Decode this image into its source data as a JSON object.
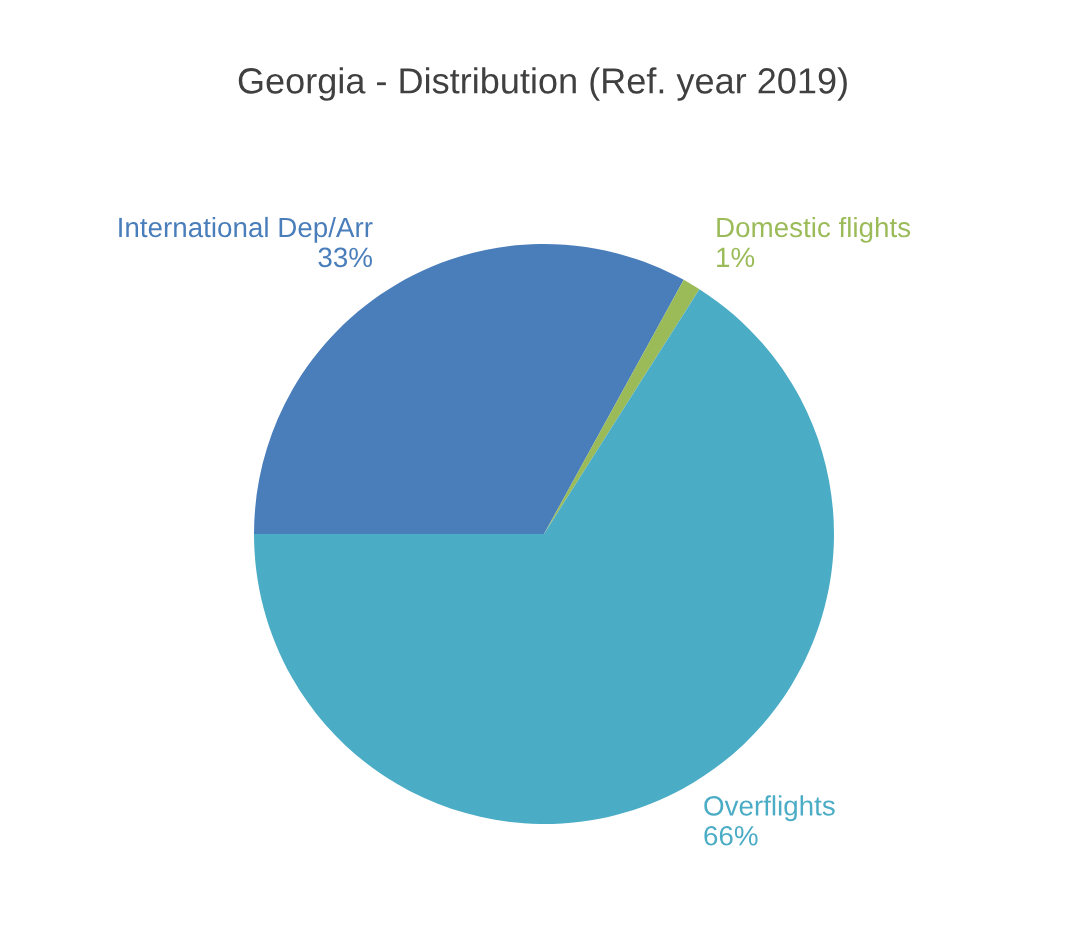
{
  "chart_data": {
    "type": "pie",
    "title": "Georgia - Distribution (Ref. year 2019)",
    "categories": [
      "International Dep/Arr",
      "Domestic flights",
      "Overflights"
    ],
    "values": [
      33,
      1,
      66
    ],
    "colors": [
      "#4a7ebb",
      "#9bbb59",
      "#4bacc6"
    ],
    "value_labels": [
      "33%",
      "1%",
      "66%"
    ],
    "legend": false
  }
}
